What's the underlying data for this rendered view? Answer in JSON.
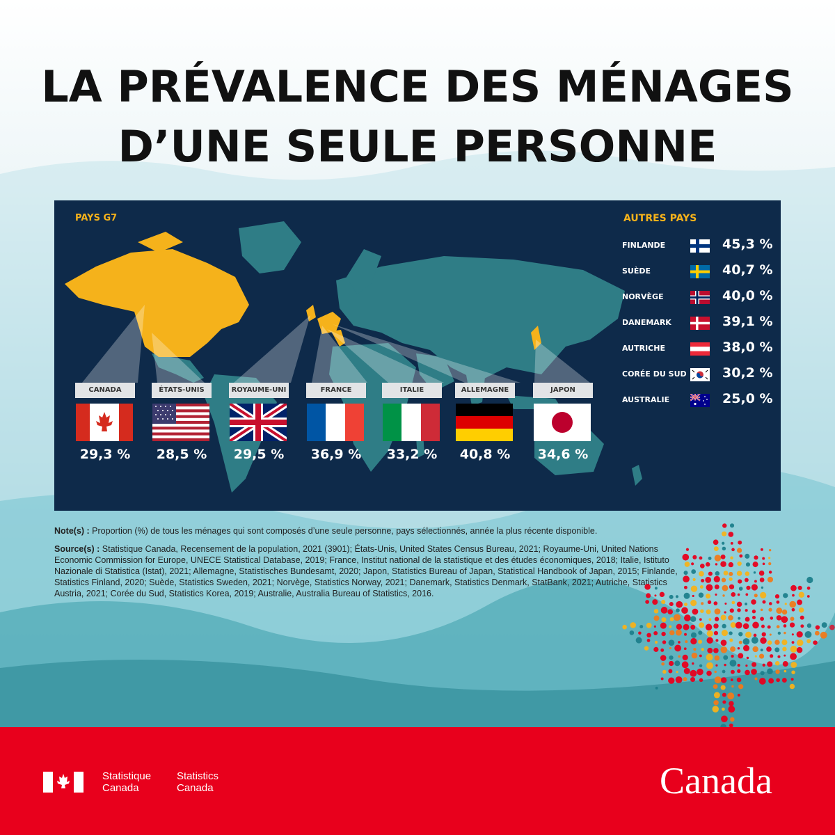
{
  "title": {
    "line1": "LA PRÉVALENCE DES MÉNAGES",
    "line2": "D’UNE SEULE PERSONNE"
  },
  "panel": {
    "g7_heading": "PAYS G7",
    "others_heading": "AUTRES PAYS",
    "g7": [
      {
        "label": "CANADA",
        "value": "29,3 %",
        "flag": "canada-flag-icon"
      },
      {
        "label": "ÉTATS-UNIS",
        "value": "28,5 %",
        "flag": "usa-flag-icon"
      },
      {
        "label": "ROYAUME-UNI",
        "value": "29,5 %",
        "flag": "uk-flag-icon"
      },
      {
        "label": "FRANCE",
        "value": "36,9 %",
        "flag": "france-flag-icon"
      },
      {
        "label": "ITALIE",
        "value": "33,2 %",
        "flag": "italy-flag-icon"
      },
      {
        "label": "ALLEMAGNE",
        "value": "40,8 %",
        "flag": "germany-flag-icon"
      },
      {
        "label": "JAPON",
        "value": "34,6 %",
        "flag": "japan-flag-icon"
      }
    ],
    "others": [
      {
        "label": "FINLANDE",
        "value": "45,3 %",
        "flag": "finland-flag-icon"
      },
      {
        "label": "SUÈDE",
        "value": "40,7 %",
        "flag": "sweden-flag-icon"
      },
      {
        "label": "NORVÈGE",
        "value": "40,0 %",
        "flag": "norway-flag-icon"
      },
      {
        "label": "DANEMARK",
        "value": "39,1 %",
        "flag": "denmark-flag-icon"
      },
      {
        "label": "AUTRICHE",
        "value": "38,0 %",
        "flag": "austria-flag-icon"
      },
      {
        "label": "CORÉE DU SUD",
        "value": "30,2 %",
        "flag": "south-korea-flag-icon"
      },
      {
        "label": "AUSTRALIE",
        "value": "25,0 %",
        "flag": "australia-flag-icon"
      }
    ]
  },
  "notes": {
    "note_label": "Note(s) :",
    "note_text": " Proportion (%) de tous les ménages qui sont composés d’une seule personne, pays sélectionnés, année la plus récente disponible.",
    "source_label": "Source(s) :",
    "source_text": " Statistique Canada, Recensement de la population, 2021 (3901); États-Unis, United States Census Bureau, 2021; Royaume-Uni, United Nations Economic Commission for Europe, UNECE Statistical Database, 2019; France, Institut national de la statistique et des études économiques, 2018; Italie, Istituto Nazionale di Statistica (Istat), 2021; Allemagne, Statistisches Bundesamt, 2020; Japon, Statistics Bureau of Japan, Statistical Handbook of Japan, 2015; Finlande, Statistics Finland, 2020; Suède, Statistics Sweden, 2021; Norvège, Statistics Norway, 2021; Danemark, Statistics Denmark, StatBank, 2021; Autriche, Statistics Austria, 2021; Corée du Sud, Statistics Korea, 2019; Australie, Australia Bureau of Statistics, 2016."
  },
  "footer": {
    "dept_fr": [
      "Statistique",
      "Canada"
    ],
    "dept_en": [
      "Statistics",
      "Canada"
    ],
    "wordmark": "Canada"
  },
  "colors": {
    "accent_yellow": "#f5b21b",
    "panel_navy": "#0e2a4a",
    "map_teal": "#2f7d86",
    "footer_red": "#e8001c"
  }
}
